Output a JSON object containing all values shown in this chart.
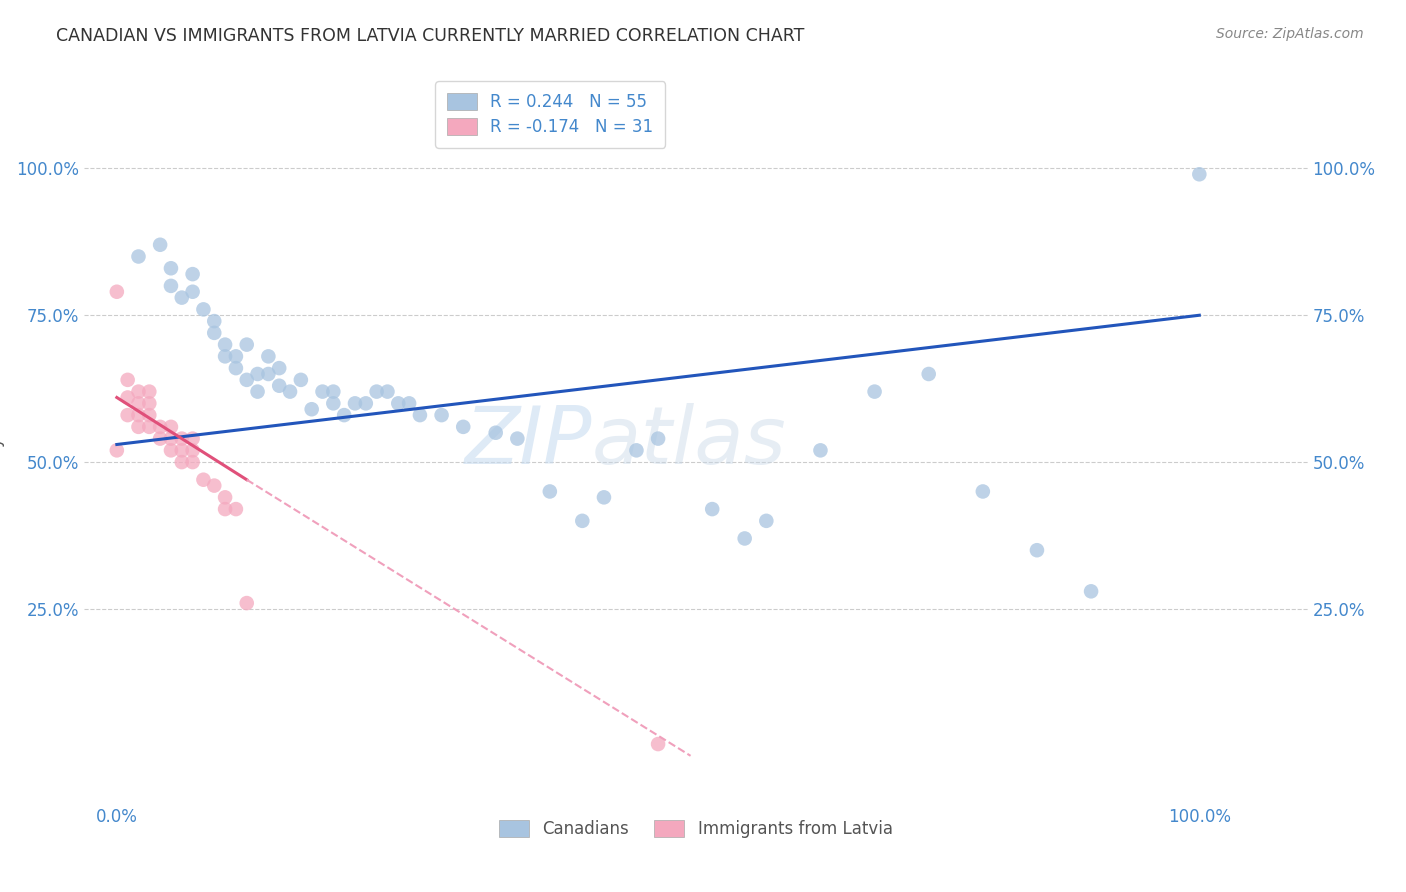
{
  "title": "CANADIAN VS IMMIGRANTS FROM LATVIA CURRENTLY MARRIED CORRELATION CHART",
  "source": "Source: ZipAtlas.com",
  "ylabel_label": "Currently Married",
  "ytick_labels": [
    "25.0%",
    "50.0%",
    "75.0%",
    "100.0%"
  ],
  "ytick_values": [
    25,
    50,
    75,
    100
  ],
  "xtick_values": [
    0,
    100
  ],
  "xtick_labels": [
    "0.0%",
    "100.0%"
  ],
  "xlim": [
    -3,
    110
  ],
  "ylim": [
    -8,
    115
  ],
  "watermark_zip": "ZIP",
  "watermark_atlas": "atlas",
  "canadians_color": "#a8c4e0",
  "immigrants_color": "#f4a8be",
  "trend_blue": "#2255bb",
  "trend_pink_solid": "#e0507a",
  "trend_pink_dash": "#f0a0bc",
  "tick_color": "#4488cc",
  "grid_color": "#cccccc",
  "title_color": "#333333",
  "source_color": "#888888",
  "background_color": "#ffffff",
  "canadians_x": [
    2,
    4,
    5,
    5,
    6,
    7,
    7,
    8,
    9,
    9,
    10,
    10,
    11,
    11,
    12,
    12,
    13,
    13,
    14,
    14,
    15,
    15,
    16,
    17,
    18,
    19,
    20,
    20,
    21,
    22,
    23,
    24,
    25,
    26,
    27,
    28,
    30,
    32,
    35,
    37,
    40,
    43,
    45,
    48,
    50,
    55,
    58,
    60,
    65,
    70,
    75,
    80,
    85,
    90,
    100
  ],
  "canadians_y": [
    85,
    87,
    80,
    83,
    78,
    82,
    79,
    76,
    74,
    72,
    70,
    68,
    66,
    68,
    64,
    70,
    62,
    65,
    65,
    68,
    63,
    66,
    62,
    64,
    59,
    62,
    60,
    62,
    58,
    60,
    60,
    62,
    62,
    60,
    60,
    58,
    58,
    56,
    55,
    54,
    45,
    40,
    44,
    52,
    54,
    42,
    37,
    40,
    52,
    62,
    65,
    45,
    35,
    28,
    99
  ],
  "immigrants_x": [
    0,
    0,
    1,
    1,
    1,
    2,
    2,
    2,
    2,
    3,
    3,
    3,
    3,
    4,
    4,
    5,
    5,
    5,
    6,
    6,
    6,
    7,
    7,
    7,
    8,
    9,
    10,
    10,
    11,
    12,
    50
  ],
  "immigrants_y": [
    79,
    52,
    58,
    61,
    64,
    56,
    58,
    60,
    62,
    56,
    58,
    60,
    62,
    54,
    56,
    52,
    54,
    56,
    50,
    52,
    54,
    50,
    52,
    54,
    47,
    46,
    42,
    44,
    42,
    26,
    2
  ],
  "blue_trend_x0": 0,
  "blue_trend_y0": 53,
  "blue_trend_x1": 100,
  "blue_trend_y1": 75,
  "pink_solid_x0": 0,
  "pink_solid_y0": 61,
  "pink_solid_x1": 12,
  "pink_solid_y1": 47,
  "pink_dash_x0": 12,
  "pink_dash_y0": 47,
  "pink_dash_x1": 53,
  "pink_dash_y1": 0
}
